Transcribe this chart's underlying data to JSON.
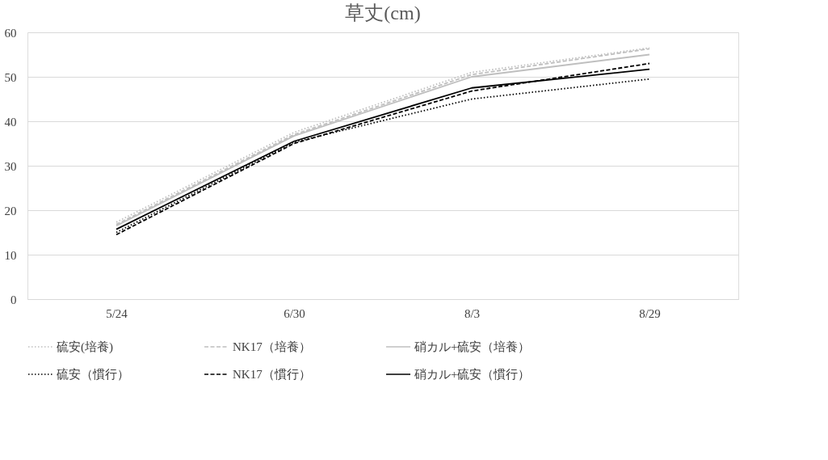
{
  "chart_data": {
    "type": "line",
    "title": "草丈(cm)",
    "categories": [
      "5/24",
      "6/30",
      "8/3",
      "8/29"
    ],
    "ylim": [
      0,
      60
    ],
    "yticks": [
      0,
      10,
      20,
      30,
      40,
      50,
      60
    ],
    "grid": "y",
    "legend": "bottom",
    "marker": "none",
    "series": [
      {
        "name": "硫安(培養)",
        "color": "#bfbfbf",
        "line_style": "dotted",
        "values": [
          17.3,
          37.5,
          51,
          56.5
        ]
      },
      {
        "name": "NK17（培養）",
        "color": "#bfbfbf",
        "line_style": "dashed",
        "values": [
          16.8,
          37.0,
          50.5,
          56.3
        ]
      },
      {
        "name": "硝カル+硫安（培養）",
        "color": "#bfbfbf",
        "line_style": "solid",
        "values": [
          16.5,
          36.7,
          50,
          55
        ]
      },
      {
        "name": "硫安（慣行）",
        "color": "#000000",
        "line_style": "dotted",
        "values": [
          15.0,
          35.3,
          45,
          49.5
        ]
      },
      {
        "name": "NK17（慣行）",
        "color": "#000000",
        "line_style": "dashed",
        "values": [
          14.5,
          35.0,
          46.8,
          53
        ]
      },
      {
        "name": "硝カル+硫安（慣行）",
        "color": "#000000",
        "line_style": "solid",
        "values": [
          15.7,
          35.5,
          47.5,
          51.7
        ]
      }
    ]
  }
}
